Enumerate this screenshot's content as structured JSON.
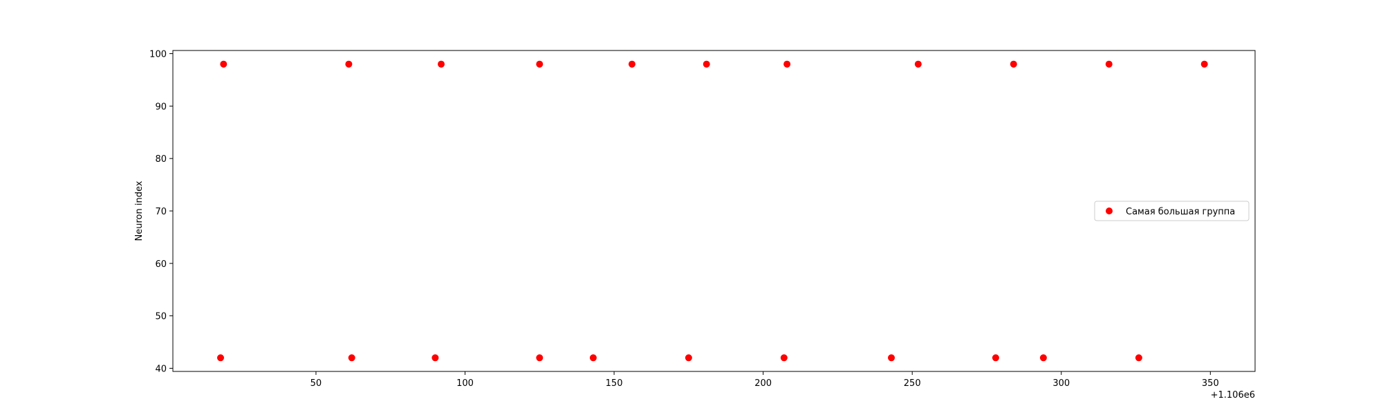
{
  "chart_data": {
    "type": "scatter",
    "title": "",
    "xlabel": "",
    "ylabel": "Neuron index",
    "x_offset_label": "+1.106e6",
    "x_offset": 1106000,
    "xlim": [
      1106002,
      1106365
    ],
    "ylim": [
      39.4,
      100.6
    ],
    "xticks": [
      {
        "value": 50,
        "label": "50"
      },
      {
        "value": 100,
        "label": "100"
      },
      {
        "value": 150,
        "label": "150"
      },
      {
        "value": 200,
        "label": "200"
      },
      {
        "value": 250,
        "label": "250"
      },
      {
        "value": 300,
        "label": "300"
      },
      {
        "value": 350,
        "label": "350"
      }
    ],
    "yticks": [
      {
        "value": 40,
        "label": "40"
      },
      {
        "value": 50,
        "label": "50"
      },
      {
        "value": 60,
        "label": "60"
      },
      {
        "value": 70,
        "label": "70"
      },
      {
        "value": 80,
        "label": "80"
      },
      {
        "value": 90,
        "label": "90"
      },
      {
        "value": 100,
        "label": "100"
      }
    ],
    "grid": false,
    "legend_placement": "center-right",
    "series": [
      {
        "name": "Самая большая группа",
        "color": "#ff0000",
        "marker": "circle",
        "points": [
          {
            "x": 1106019,
            "y": 98
          },
          {
            "x": 1106061,
            "y": 98
          },
          {
            "x": 1106092,
            "y": 98
          },
          {
            "x": 1106125,
            "y": 98
          },
          {
            "x": 1106156,
            "y": 98
          },
          {
            "x": 1106181,
            "y": 98
          },
          {
            "x": 1106208,
            "y": 98
          },
          {
            "x": 1106252,
            "y": 98
          },
          {
            "x": 1106284,
            "y": 98
          },
          {
            "x": 1106316,
            "y": 98
          },
          {
            "x": 1106348,
            "y": 98
          },
          {
            "x": 1106018,
            "y": 42
          },
          {
            "x": 1106062,
            "y": 42
          },
          {
            "x": 1106090,
            "y": 42
          },
          {
            "x": 1106125,
            "y": 42
          },
          {
            "x": 1106143,
            "y": 42
          },
          {
            "x": 1106175,
            "y": 42
          },
          {
            "x": 1106207,
            "y": 42
          },
          {
            "x": 1106243,
            "y": 42
          },
          {
            "x": 1106278,
            "y": 42
          },
          {
            "x": 1106294,
            "y": 42
          },
          {
            "x": 1106326,
            "y": 42
          }
        ]
      }
    ]
  }
}
